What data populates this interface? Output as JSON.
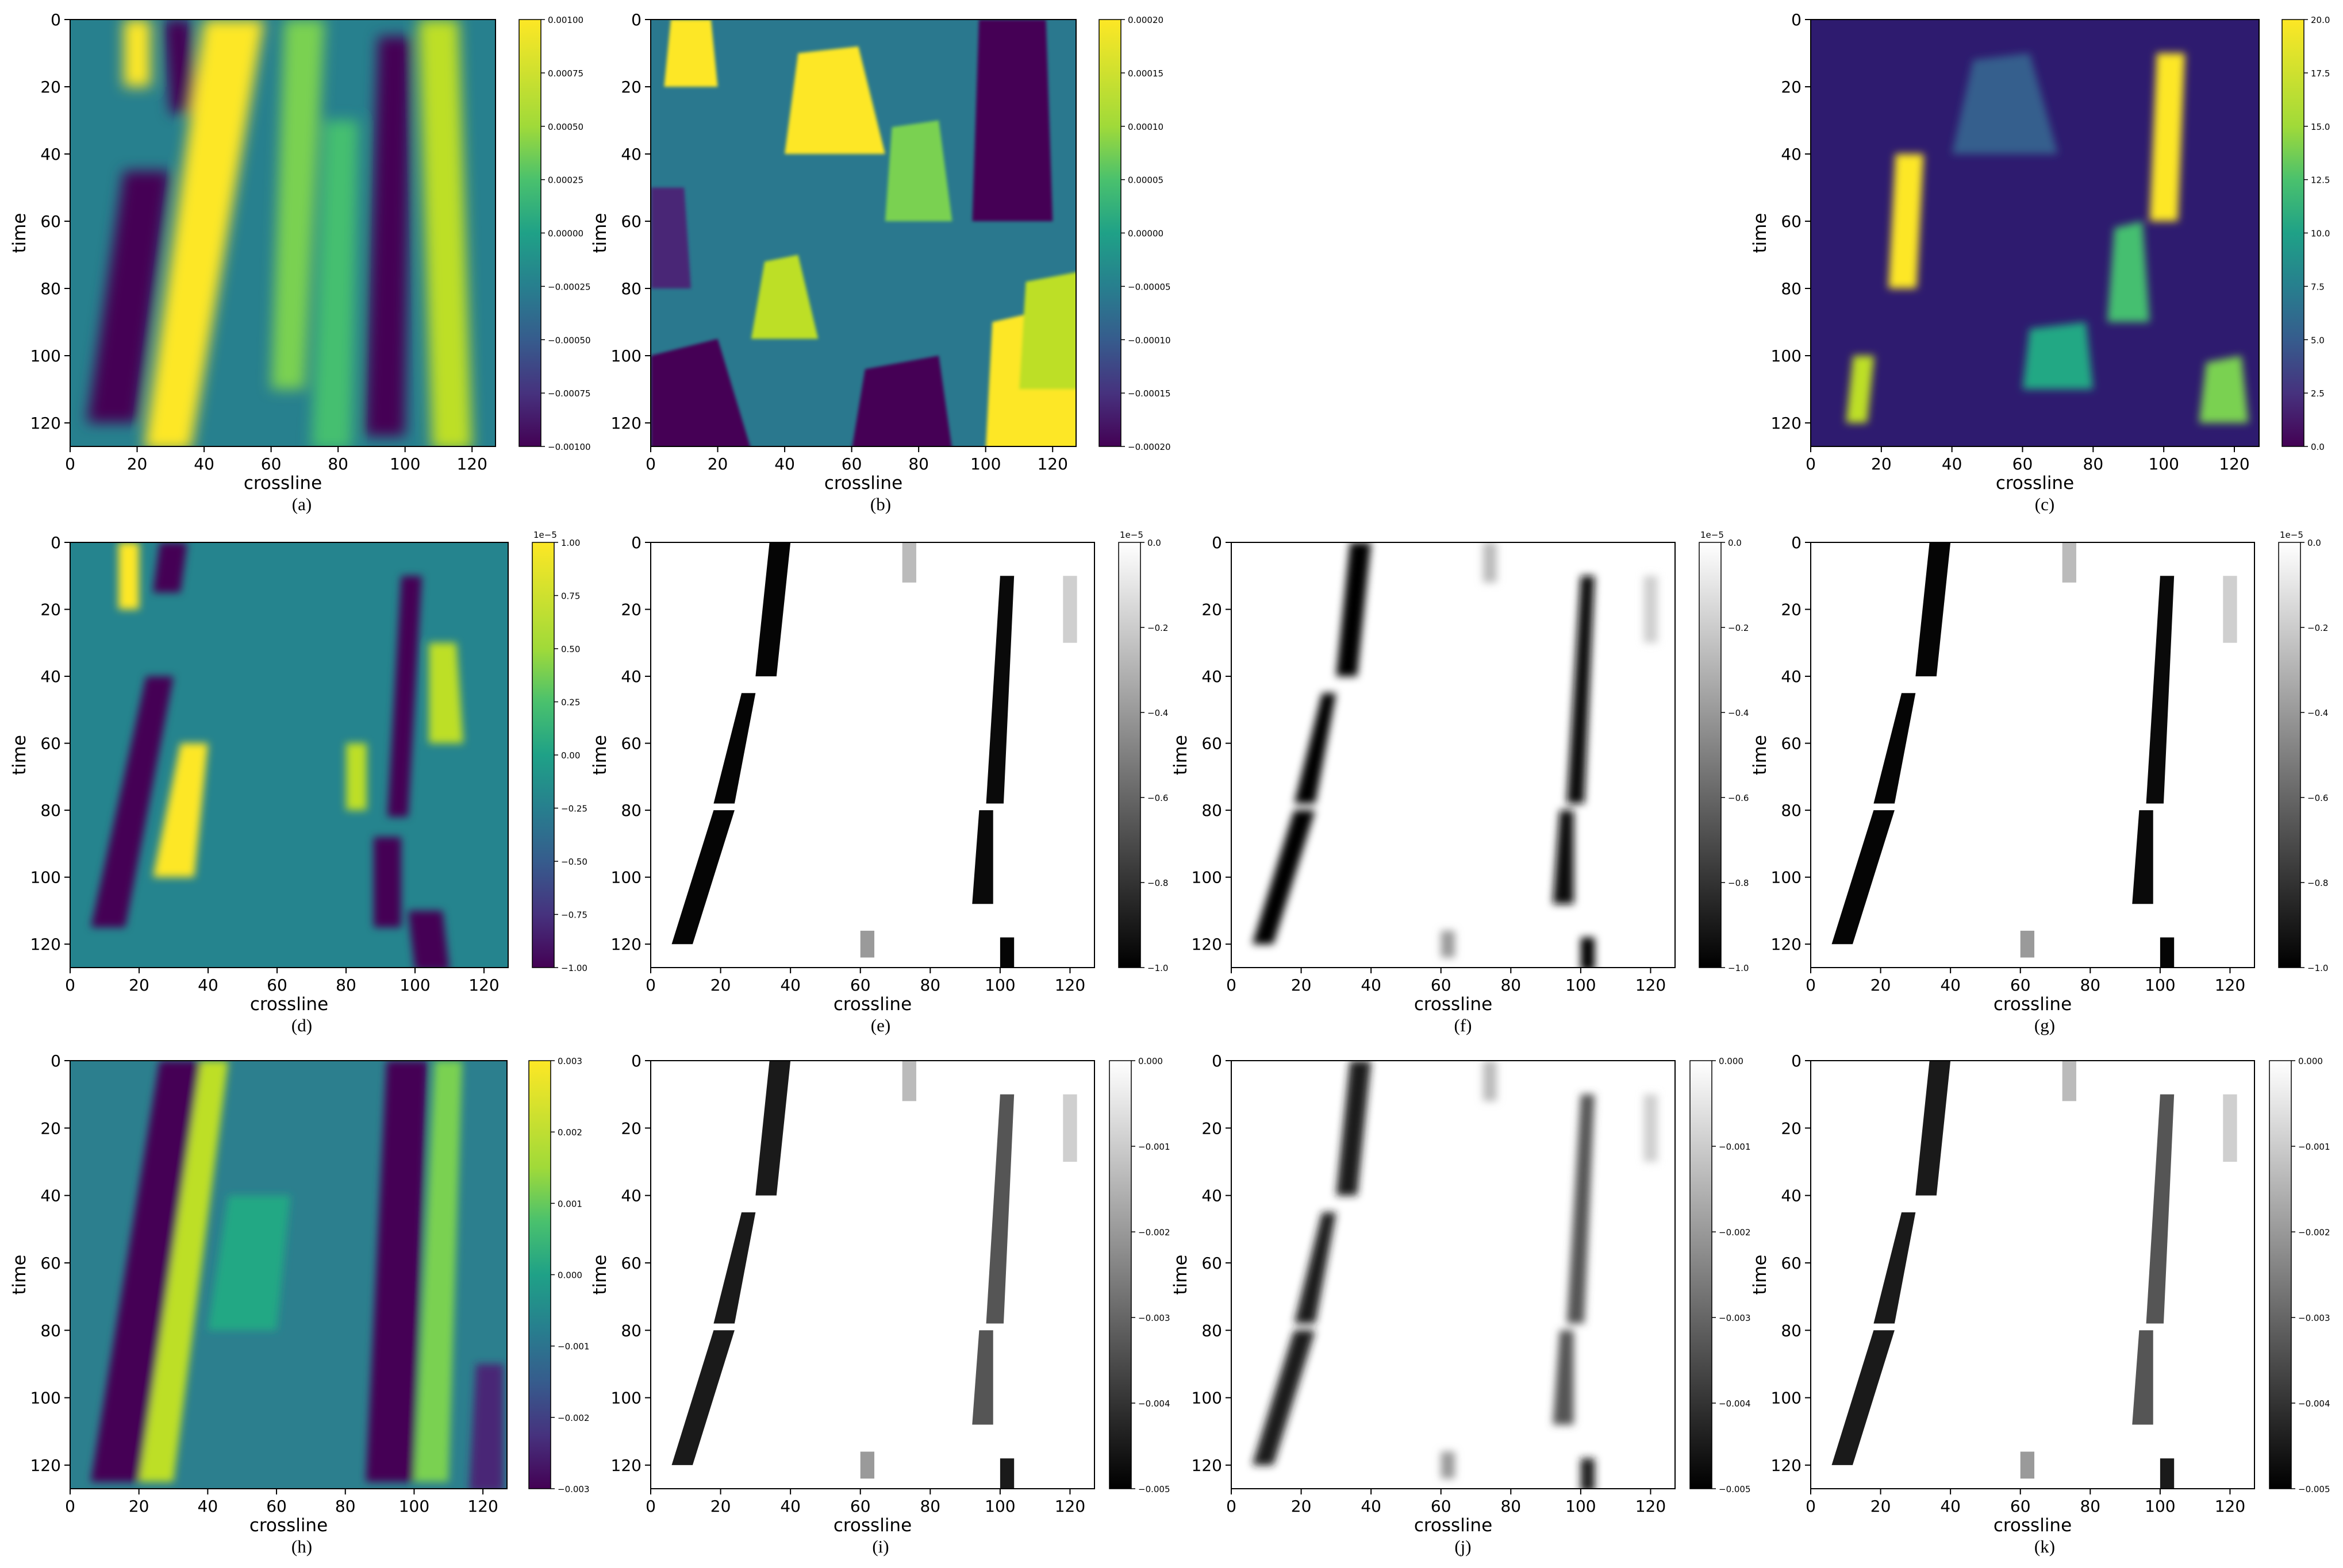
{
  "figure": {
    "panels": [
      {
        "id": "a",
        "caption": "(a)",
        "colormap": "viridis",
        "xlabel": "crossline",
        "ylabel": "time",
        "cbar": {
          "ticks": [
            "0.00100",
            "0.00075",
            "0.00050",
            "0.00025",
            "0.00000",
            "−0.00025",
            "−0.00050",
            "−0.00075",
            "−0.00100"
          ],
          "offset": ""
        }
      },
      {
        "id": "b",
        "caption": "(b)",
        "colormap": "viridis",
        "xlabel": "crossline",
        "ylabel": "time",
        "cbar": {
          "ticks": [
            "0.00020",
            "0.00015",
            "0.00010",
            "0.00005",
            "0.00000",
            "−0.00005",
            "−0.00010",
            "−0.00015",
            "−0.00020"
          ],
          "offset": ""
        }
      },
      {
        "id": "c",
        "caption": "(c)",
        "colormap": "viridis",
        "xlabel": "crossline",
        "ylabel": "time",
        "cbar": {
          "ticks": [
            "20.0",
            "17.5",
            "15.0",
            "12.5",
            "10.0",
            "7.5",
            "5.0",
            "2.5",
            "0.0"
          ],
          "offset": ""
        }
      },
      {
        "id": "d",
        "caption": "(d)",
        "colormap": "viridis",
        "xlabel": "crossline",
        "ylabel": "time",
        "cbar": {
          "ticks": [
            "1.00",
            "0.75",
            "0.50",
            "0.25",
            "0.00",
            "−0.25",
            "−0.50",
            "−0.75",
            "−1.00"
          ],
          "offset": "1e−5"
        }
      },
      {
        "id": "e",
        "caption": "(e)",
        "colormap": "gray",
        "xlabel": "crossline",
        "ylabel": "time",
        "cbar": {
          "ticks": [
            "0.0",
            "−0.2",
            "−0.4",
            "−0.6",
            "−0.8",
            "−1.0"
          ],
          "offset": "1e−5"
        }
      },
      {
        "id": "f",
        "caption": "(f)",
        "colormap": "gray",
        "xlabel": "crossline",
        "ylabel": "time",
        "cbar": {
          "ticks": [
            "0.0",
            "−0.2",
            "−0.4",
            "−0.6",
            "−0.8",
            "−1.0"
          ],
          "offset": "1e−5"
        }
      },
      {
        "id": "g",
        "caption": "(g)",
        "colormap": "gray",
        "xlabel": "crossline",
        "ylabel": "time",
        "cbar": {
          "ticks": [
            "0.0",
            "−0.2",
            "−0.4",
            "−0.6",
            "−0.8",
            "−1.0"
          ],
          "offset": "1e−5"
        }
      },
      {
        "id": "h",
        "caption": "(h)",
        "colormap": "viridis",
        "xlabel": "crossline",
        "ylabel": "time",
        "cbar": {
          "ticks": [
            "0.003",
            "0.002",
            "0.001",
            "0.000",
            "−0.001",
            "−0.002",
            "−0.003"
          ],
          "offset": ""
        }
      },
      {
        "id": "i",
        "caption": "(i)",
        "colormap": "gray",
        "xlabel": "crossline",
        "ylabel": "time",
        "cbar": {
          "ticks": [
            "0.000",
            "−0.001",
            "−0.002",
            "−0.003",
            "−0.004",
            "−0.005"
          ],
          "offset": ""
        }
      },
      {
        "id": "j",
        "caption": "(j)",
        "colormap": "gray",
        "xlabel": "crossline",
        "ylabel": "time",
        "cbar": {
          "ticks": [
            "0.000",
            "−0.001",
            "−0.002",
            "−0.003",
            "−0.004",
            "−0.005"
          ],
          "offset": ""
        }
      },
      {
        "id": "k",
        "caption": "(k)",
        "colormap": "gray",
        "xlabel": "crossline",
        "ylabel": "time",
        "cbar": {
          "ticks": [
            "0.000",
            "−0.001",
            "−0.002",
            "−0.003",
            "−0.004",
            "−0.005"
          ],
          "offset": ""
        }
      }
    ]
  },
  "chart_data": [
    {
      "type": "heatmap",
      "panel": "a",
      "xlabel": "crossline",
      "ylabel": "time",
      "x_ticks": [
        0,
        20,
        40,
        60,
        80,
        100,
        120
      ],
      "y_ticks": [
        0,
        20,
        40,
        60,
        80,
        100,
        120
      ],
      "xlim": [
        0,
        127
      ],
      "ylim": [
        127,
        0
      ],
      "clim": [
        -0.001,
        0.001
      ]
    },
    {
      "type": "heatmap",
      "panel": "b",
      "xlabel": "crossline",
      "ylabel": "time",
      "x_ticks": [
        0,
        20,
        40,
        60,
        80,
        100,
        120
      ],
      "y_ticks": [
        0,
        20,
        40,
        60,
        80,
        100,
        120
      ],
      "xlim": [
        0,
        127
      ],
      "ylim": [
        127,
        0
      ],
      "clim": [
        -0.0002,
        0.0002
      ]
    },
    {
      "type": "heatmap",
      "panel": "c",
      "xlabel": "crossline",
      "ylabel": "time",
      "x_ticks": [
        0,
        20,
        40,
        60,
        80,
        100,
        120
      ],
      "y_ticks": [
        0,
        20,
        40,
        60,
        80,
        100,
        120
      ],
      "xlim": [
        0,
        127
      ],
      "ylim": [
        127,
        0
      ],
      "clim": [
        0,
        20
      ]
    },
    {
      "type": "heatmap",
      "panel": "d",
      "xlabel": "crossline",
      "ylabel": "time",
      "x_ticks": [
        0,
        20,
        40,
        60,
        80,
        100,
        120
      ],
      "y_ticks": [
        0,
        20,
        40,
        60,
        80,
        100,
        120
      ],
      "xlim": [
        0,
        127
      ],
      "ylim": [
        127,
        0
      ],
      "clim": [
        -1e-05,
        1e-05
      ]
    },
    {
      "type": "heatmap",
      "panel": "e",
      "xlabel": "crossline",
      "ylabel": "time",
      "x_ticks": [
        0,
        20,
        40,
        60,
        80,
        100,
        120
      ],
      "y_ticks": [
        0,
        20,
        40,
        60,
        80,
        100,
        120
      ],
      "xlim": [
        0,
        127
      ],
      "ylim": [
        127,
        0
      ],
      "clim": [
        -1e-05,
        0
      ]
    },
    {
      "type": "heatmap",
      "panel": "f",
      "xlabel": "crossline",
      "ylabel": "time",
      "x_ticks": [
        0,
        20,
        40,
        60,
        80,
        100,
        120
      ],
      "y_ticks": [
        0,
        20,
        40,
        60,
        80,
        100,
        120
      ],
      "xlim": [
        0,
        127
      ],
      "ylim": [
        127,
        0
      ],
      "clim": [
        -1e-05,
        0
      ]
    },
    {
      "type": "heatmap",
      "panel": "g",
      "xlabel": "crossline",
      "ylabel": "time",
      "x_ticks": [
        0,
        20,
        40,
        60,
        80,
        100,
        120
      ],
      "y_ticks": [
        0,
        20,
        40,
        60,
        80,
        100,
        120
      ],
      "xlim": [
        0,
        127
      ],
      "ylim": [
        127,
        0
      ],
      "clim": [
        -1e-05,
        0
      ]
    },
    {
      "type": "heatmap",
      "panel": "h",
      "xlabel": "crossline",
      "ylabel": "time",
      "x_ticks": [
        0,
        20,
        40,
        60,
        80,
        100,
        120
      ],
      "y_ticks": [
        0,
        20,
        40,
        60,
        80,
        100,
        120
      ],
      "xlim": [
        0,
        127
      ],
      "ylim": [
        127,
        0
      ],
      "clim": [
        -0.003,
        0.003
      ]
    },
    {
      "type": "heatmap",
      "panel": "i",
      "xlabel": "crossline",
      "ylabel": "time",
      "x_ticks": [
        0,
        20,
        40,
        60,
        80,
        100,
        120
      ],
      "y_ticks": [
        0,
        20,
        40,
        60,
        80,
        100,
        120
      ],
      "xlim": [
        0,
        127
      ],
      "ylim": [
        127,
        0
      ],
      "clim": [
        -0.005,
        0
      ]
    },
    {
      "type": "heatmap",
      "panel": "j",
      "xlabel": "crossline",
      "ylabel": "time",
      "x_ticks": [
        0,
        20,
        40,
        60,
        80,
        100,
        120
      ],
      "y_ticks": [
        0,
        20,
        40,
        60,
        80,
        100,
        120
      ],
      "xlim": [
        0,
        127
      ],
      "ylim": [
        127,
        0
      ],
      "clim": [
        -0.005,
        0
      ]
    },
    {
      "type": "heatmap",
      "panel": "k",
      "xlabel": "crossline",
      "ylabel": "time",
      "x_ticks": [
        0,
        20,
        40,
        60,
        80,
        100,
        120
      ],
      "y_ticks": [
        0,
        20,
        40,
        60,
        80,
        100,
        120
      ],
      "xlim": [
        0,
        127
      ],
      "ylim": [
        127,
        0
      ],
      "clim": [
        -0.005,
        0
      ]
    }
  ]
}
